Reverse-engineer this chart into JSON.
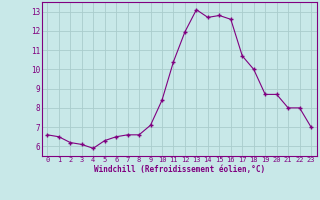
{
  "x": [
    0,
    1,
    2,
    3,
    4,
    5,
    6,
    7,
    8,
    9,
    10,
    11,
    12,
    13,
    14,
    15,
    16,
    17,
    18,
    19,
    20,
    21,
    22,
    23
  ],
  "y": [
    6.6,
    6.5,
    6.2,
    6.1,
    5.9,
    6.3,
    6.5,
    6.6,
    6.6,
    7.1,
    8.4,
    10.4,
    11.95,
    13.1,
    12.7,
    12.8,
    12.6,
    10.7,
    10.0,
    8.7,
    8.7,
    8.0,
    8.0,
    7.0
  ],
  "line_color": "#800080",
  "marker_color": "#800080",
  "bg_color": "#c8e8e8",
  "grid_color": "#aacccc",
  "xlabel": "Windchill (Refroidissement éolien,°C)",
  "xlabel_color": "#800080",
  "tick_color": "#800080",
  "spine_color": "#800080",
  "ylim": [
    5.5,
    13.5
  ],
  "xlim": [
    -0.5,
    23.5
  ],
  "yticks": [
    6,
    7,
    8,
    9,
    10,
    11,
    12,
    13
  ],
  "xticks": [
    0,
    1,
    2,
    3,
    4,
    5,
    6,
    7,
    8,
    9,
    10,
    11,
    12,
    13,
    14,
    15,
    16,
    17,
    18,
    19,
    20,
    21,
    22,
    23
  ],
  "figsize": [
    3.2,
    2.0
  ],
  "dpi": 100
}
